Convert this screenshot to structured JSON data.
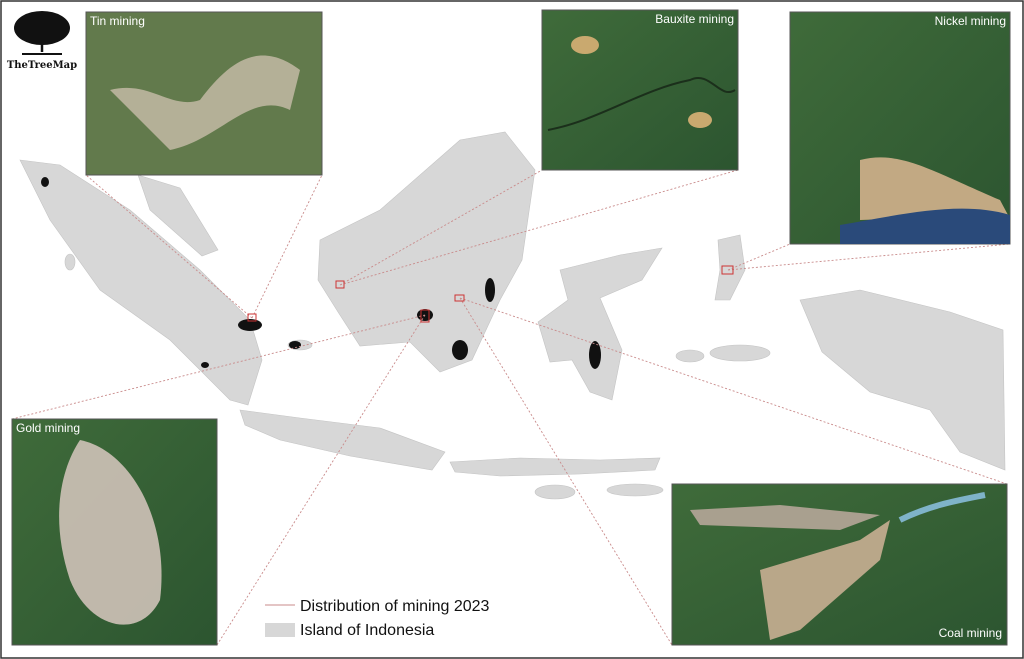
{
  "logo": "TheTreeMap",
  "insets": [
    {
      "label": "Tin mining"
    },
    {
      "label": "Bauxite mining"
    },
    {
      "label": "Nickel mining"
    },
    {
      "label": "Gold mining"
    },
    {
      "label": "Coal mining"
    }
  ],
  "legend": [
    {
      "label": "Distribution of mining 2023"
    },
    {
      "label": "Island of Indonesia"
    }
  ]
}
